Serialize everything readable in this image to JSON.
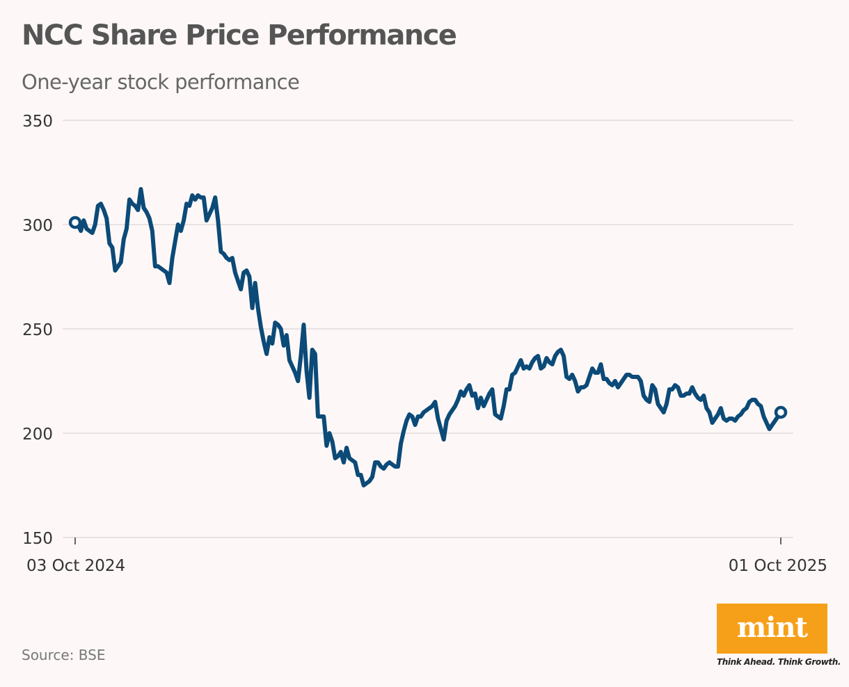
{
  "header": {
    "title": "NCC Share Price Performance",
    "subtitle": "One-year stock performance"
  },
  "footer": {
    "source": "Source: BSE"
  },
  "logo": {
    "text": "mint",
    "tagline": "Think Ahead. Think Growth.",
    "color": "#f6a01a"
  },
  "chart_data": {
    "type": "line",
    "title": "NCC Share Price Performance",
    "subtitle": "One-year stock performance",
    "xlabel": "",
    "ylabel": "",
    "ylim": [
      150,
      350
    ],
    "yticks": [
      150,
      200,
      250,
      300,
      350
    ],
    "xlim": [
      "03 Oct 2024",
      "01 Oct 2025"
    ],
    "xtick_labels": [
      "03 Oct 2024",
      "01 Oct 2025"
    ],
    "grid": "horizontal",
    "legend": "none",
    "line_color": "#0c4a78",
    "series": [
      {
        "values": [
          301,
          300,
          297,
          302,
          298,
          297,
          296,
          300,
          309,
          310,
          307,
          303,
          291,
          289,
          278,
          280,
          282,
          293,
          298,
          312,
          310,
          309,
          307,
          317,
          308,
          306,
          303,
          297,
          280,
          280,
          279,
          278,
          277,
          272,
          284,
          292,
          300,
          297,
          302,
          310,
          309,
          314,
          312,
          314,
          313,
          313,
          302,
          305,
          308,
          313,
          302,
          287,
          286,
          284,
          283,
          284,
          277,
          273,
          269,
          277,
          278,
          275,
          260,
          272,
          260,
          251,
          244,
          238,
          246,
          243,
          253,
          252,
          250,
          242,
          247,
          235,
          232,
          229,
          225,
          237,
          252,
          230,
          217,
          240,
          238,
          208,
          208,
          208,
          194,
          200,
          196,
          188,
          189,
          191,
          186,
          193,
          188,
          187,
          186,
          180,
          180,
          175,
          176,
          177,
          179,
          186,
          186,
          184,
          183,
          185,
          186,
          185,
          184,
          184,
          195,
          201,
          206,
          209,
          208,
          204,
          208,
          208,
          210,
          211,
          212,
          213,
          215,
          207,
          202,
          197,
          206,
          209,
          211,
          213,
          216,
          220,
          218,
          221,
          223,
          218,
          219,
          212,
          217,
          213,
          216,
          219,
          221,
          209,
          208,
          207,
          213,
          221,
          221,
          228,
          229,
          232,
          235,
          231,
          232,
          231,
          234,
          236,
          237,
          231,
          232,
          236,
          234,
          233,
          237,
          239,
          240,
          237,
          227,
          226,
          228,
          225,
          220,
          222,
          222,
          223,
          227,
          231,
          229,
          229,
          233,
          226,
          226,
          224,
          223,
          225,
          222,
          224,
          226,
          228,
          228,
          227,
          227,
          227,
          225,
          218,
          216,
          215,
          223,
          221,
          214,
          212,
          210,
          214,
          221,
          221,
          223,
          222,
          218,
          218,
          219,
          219,
          222,
          219,
          217,
          216,
          218,
          212,
          210,
          205,
          207,
          209,
          212,
          207,
          206,
          207,
          207,
          206,
          208,
          209,
          211,
          212,
          215,
          216,
          216,
          214,
          213,
          208,
          205,
          202,
          204,
          206,
          208,
          210
        ]
      }
    ],
    "markers": [
      "first",
      "last"
    ]
  }
}
